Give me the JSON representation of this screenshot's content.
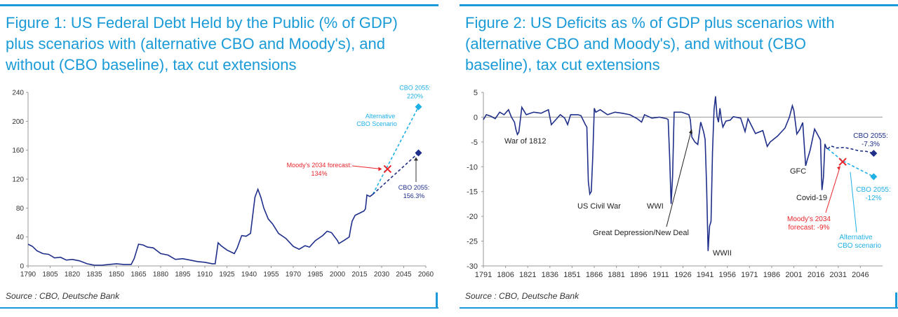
{
  "figure1": {
    "title_line1": "Figure 1: US Federal Debt Held by the Public (% of GDP)",
    "title_line2": "plus scenarios with (alternative CBO and Moody's), and",
    "title_line3": "without (CBO baseline), tax cut extensions",
    "source": "Source : CBO, Deutsche Bank"
  },
  "figure2": {
    "title_line1": "Figure 2: US Deficits as % of GDP plus scenarios with",
    "title_line2": "(alternative CBO and Moody's), and without (CBO",
    "title_line3": "baseline), tax cut extensions",
    "source": "Source : CBO, Deutsche Bank"
  },
  "colors": {
    "accent": "#1a9bd7",
    "navy": "#1f2f8a",
    "red": "#e8252b",
    "light_blue": "#1fb0e6"
  },
  "chart_data": [
    {
      "type": "line",
      "title": "Figure 1: US Federal Debt Held by the Public (% of GDP) plus scenarios with (alternative CBO and Moody's), and without (CBO baseline), tax cut extensions",
      "xlim": [
        1790,
        2060
      ],
      "ylim": [
        0,
        240
      ],
      "x_ticks": [
        1790,
        1805,
        1820,
        1835,
        1850,
        1865,
        1880,
        1895,
        1910,
        1925,
        1940,
        1955,
        1970,
        1985,
        2000,
        2015,
        2030,
        2045,
        2060
      ],
      "y_ticks": [
        0,
        40,
        80,
        120,
        160,
        200,
        240
      ],
      "series": [
        {
          "role": "historical",
          "x": [
            1790,
            1793,
            1796,
            1800,
            1804,
            1808,
            1812,
            1816,
            1820,
            1825,
            1830,
            1835,
            1840,
            1845,
            1850,
            1855,
            1860,
            1862,
            1865,
            1868,
            1871,
            1875,
            1880,
            1885,
            1890,
            1895,
            1900,
            1905,
            1910,
            1915,
            1917,
            1919,
            1921,
            1925,
            1930,
            1932,
            1935,
            1938,
            1941,
            1944,
            1946,
            1948,
            1950,
            1953,
            1956,
            1960,
            1965,
            1970,
            1974,
            1978,
            1981,
            1985,
            1990,
            1993,
            1996,
            2000,
            2001,
            2005,
            2008,
            2009,
            2010,
            2012,
            2015,
            2018,
            2019,
            2020,
            2022,
            2024
          ],
          "values": [
            30,
            27,
            21,
            17,
            16,
            11,
            12,
            8,
            9,
            7,
            3,
            1,
            1,
            2,
            3,
            2,
            2,
            10,
            30,
            29,
            26,
            25,
            17,
            15,
            9,
            10,
            8,
            6,
            5,
            3,
            3,
            32,
            28,
            22,
            17,
            25,
            42,
            41,
            45,
            95,
            106,
            95,
            80,
            65,
            58,
            45,
            38,
            27,
            23,
            28,
            26,
            35,
            42,
            48,
            46,
            35,
            31,
            36,
            40,
            52,
            62,
            70,
            73,
            76,
            79,
            98,
            96,
            99
          ]
        },
        {
          "name": "CBO 2055: 156.3%",
          "role": "baseline",
          "style": "dashed",
          "x": [
            2024,
            2055
          ],
          "values": [
            99,
            156.3
          ]
        },
        {
          "name": "Alternative CBO Scenario",
          "role": "alternative",
          "style": "dashed",
          "x": [
            2024,
            2055
          ],
          "values": [
            99,
            220
          ]
        }
      ],
      "annotations": [
        {
          "label": "CBO 2055:",
          "label2": "220%",
          "x": 2055,
          "y": 220
        },
        {
          "label": "Alternative",
          "label2": "CBO Scenario"
        },
        {
          "label": "Moody's 2034 forecast:",
          "label2": "134%",
          "x": 2034,
          "y": 134
        },
        {
          "label": "CBO 2055:",
          "label2": "156.3%",
          "x": 2055,
          "y": 156.3
        }
      ]
    },
    {
      "type": "line",
      "title": "Figure 2: US Deficits as % of GDP plus scenarios with (alternative CBO and Moody's), and without (CBO baseline), tax cut extensions",
      "xlim": [
        1791,
        2061
      ],
      "ylim": [
        -30,
        5
      ],
      "x_ticks": [
        1791,
        1806,
        1821,
        1836,
        1851,
        1866,
        1881,
        1896,
        1911,
        1926,
        1941,
        1956,
        1971,
        1986,
        2001,
        2016,
        2031,
        2046
      ],
      "y_ticks": [
        5,
        0,
        -5,
        -10,
        -15,
        -20,
        -25,
        -30
      ],
      "series": [
        {
          "role": "historical",
          "x": [
            1791,
            1793,
            1796,
            1799,
            1802,
            1805,
            1808,
            1810,
            1812,
            1813,
            1814,
            1815,
            1817,
            1820,
            1825,
            1830,
            1835,
            1837,
            1840,
            1843,
            1846,
            1848,
            1850,
            1855,
            1857,
            1860,
            1861,
            1862,
            1863,
            1864,
            1865,
            1866,
            1867,
            1870,
            1875,
            1880,
            1885,
            1890,
            1895,
            1898,
            1900,
            1905,
            1910,
            1915,
            1916,
            1917,
            1918,
            1919,
            1920,
            1925,
            1930,
            1931,
            1932,
            1933,
            1934,
            1936,
            1938,
            1940,
            1941,
            1942,
            1943,
            1944,
            1945,
            1946,
            1947,
            1948,
            1949,
            1950,
            1951,
            1952,
            1953,
            1955,
            1958,
            1960,
            1965,
            1968,
            1970,
            1975,
            1980,
            1983,
            1985,
            1990,
            1995,
            1998,
            2000,
            2001,
            2003,
            2005,
            2007,
            2009,
            2010,
            2012,
            2015,
            2019,
            2020,
            2021,
            2022,
            2023,
            2024
          ],
          "values": [
            -0.5,
            0.5,
            0.2,
            -0.3,
            1,
            0.5,
            1.5,
            0,
            -1,
            -2.5,
            -3.5,
            -3,
            2,
            0.5,
            1,
            0.8,
            1.5,
            -1.5,
            -0.5,
            0.5,
            -0.2,
            -1.5,
            0.5,
            0.5,
            0.3,
            -1.5,
            -2,
            -13,
            -15.5,
            -15,
            -8,
            1.8,
            1,
            1.5,
            0.5,
            1,
            0.8,
            0.5,
            -0.3,
            -1,
            0.5,
            -0.2,
            0,
            -0.3,
            -0.5,
            -8,
            -17.5,
            -12,
            1,
            1,
            0.5,
            -0.5,
            -4,
            -4.5,
            -5,
            -5.5,
            -1,
            -3,
            -4.5,
            -14,
            -27,
            -22,
            -21,
            -7,
            1.5,
            4.2,
            0.2,
            -1,
            1.8,
            -0.5,
            -2,
            -0.8,
            -0.6,
            0.1,
            -0.2,
            -2.9,
            -0.3,
            -3.3,
            -2.7,
            -5.9,
            -5,
            -3.8,
            -2.2,
            0,
            2.3,
            1.3,
            -3.4,
            -2.5,
            -1.1,
            -9.8,
            -8.7,
            -6.7,
            -2.4,
            -4.6,
            -14.7,
            -12.2,
            -5.4,
            -6.2,
            -6.4
          ]
        },
        {
          "name": "CBO 2055: -7.3%",
          "role": "baseline",
          "style": "dashed",
          "x": [
            2024,
            2026,
            2030,
            2035,
            2040,
            2045,
            2050,
            2055
          ],
          "values": [
            -6.4,
            -5.8,
            -6.2,
            -6.1,
            -6.4,
            -6.8,
            -6.9,
            -7.3
          ]
        },
        {
          "name": "Alternative CBO scenario",
          "role": "alternative",
          "style": "dashed",
          "x": [
            2024,
            2034,
            2045,
            2055
          ],
          "values": [
            -6.4,
            -8.8,
            -10.5,
            -12
          ]
        }
      ],
      "annotations": [
        {
          "label": "War of 1812"
        },
        {
          "label": "US Civil War"
        },
        {
          "label": "WWI"
        },
        {
          "label": "Great Depression/New Deal"
        },
        {
          "label": "WWII"
        },
        {
          "label": "GFC"
        },
        {
          "label": "Covid-19"
        },
        {
          "label": "CBO 2055:",
          "label2": "-7.3%",
          "x": 2055,
          "y": -7.3
        },
        {
          "label": "CBO 2055:",
          "label2": "-12%",
          "x": 2055,
          "y": -12
        },
        {
          "label": "Moody's 2034",
          "label2": "forecast: -9%",
          "x": 2034,
          "y": -9
        },
        {
          "label": "Alternative",
          "label2": "CBO scenario"
        }
      ]
    }
  ]
}
